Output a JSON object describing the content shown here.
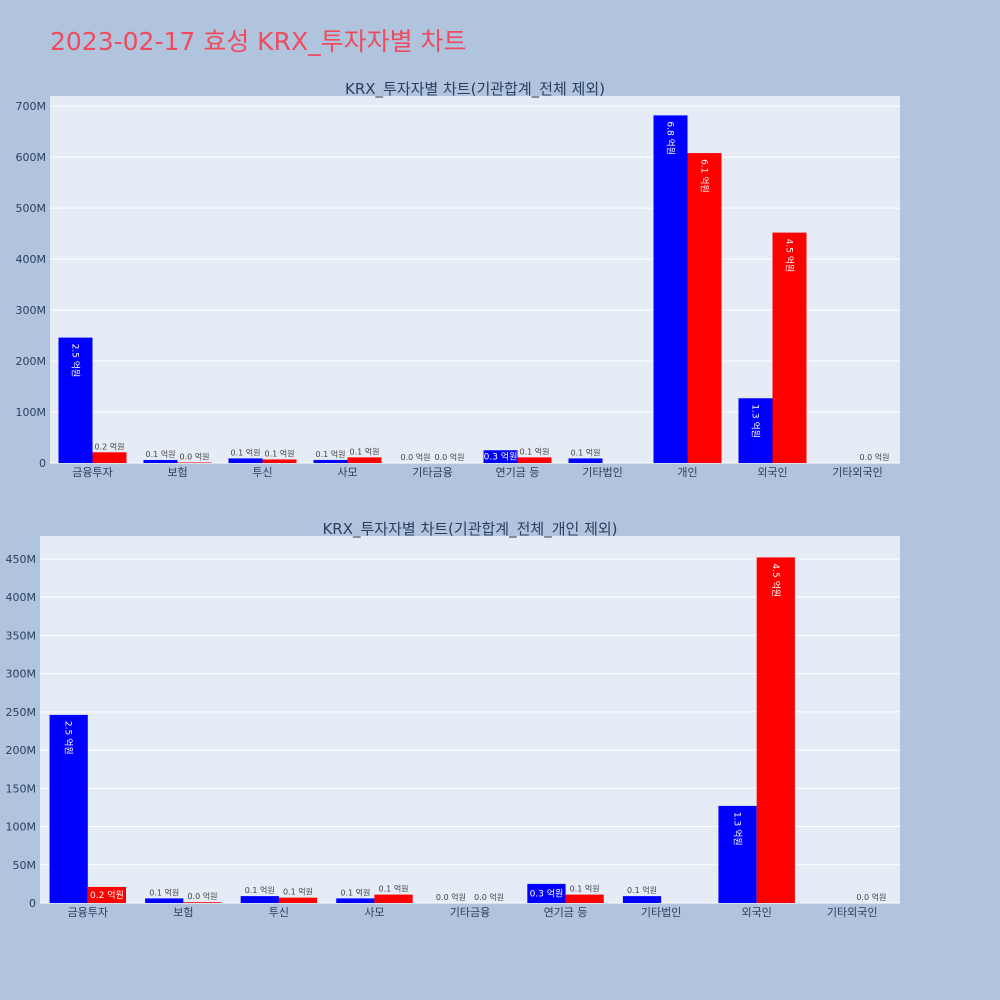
{
  "page": {
    "title": "2023-02-17 효성 KRX_투자자별 차트"
  },
  "colors": {
    "background": "#b0c4de",
    "plot_bg": "#e5ecf6",
    "title": "#ef4b5e",
    "series_a": "#0000ff",
    "series_b": "#ff0000"
  },
  "chart_data": [
    {
      "type": "bar",
      "title": "KRX_투자자별 차트(기관합계_전체 제외)",
      "categories": [
        "금융투자",
        "보험",
        "투신",
        "사모",
        "기타금융",
        "연기금 등",
        "기타법인",
        "개인",
        "외국인",
        "기타외국인"
      ],
      "ylim": [
        0,
        720000000
      ],
      "yticks": [
        0,
        100000000,
        200000000,
        300000000,
        400000000,
        500000000,
        600000000,
        700000000
      ],
      "ytick_labels": [
        "0",
        "100M",
        "200M",
        "300M",
        "400M",
        "500M",
        "600M",
        "700M"
      ],
      "grid": true,
      "series": [
        {
          "color": "#0000ff",
          "values": [
            246000000,
            6000000,
            9000000,
            6000000,
            0,
            25000000,
            9000000,
            682000000,
            127000000,
            null
          ],
          "labels": [
            "2.5 억원",
            "0.1 억원",
            "0.1 억원",
            "0.1 억원",
            "0.0 억원",
            "0.3 억원",
            "0.1 억원",
            "6.8 억원",
            "1.3 억원",
            ""
          ]
        },
        {
          "color": "#ff0000",
          "values": [
            21000000,
            1000000,
            7000000,
            11000000,
            0,
            11000000,
            null,
            608000000,
            452000000,
            0
          ],
          "labels": [
            "0.2 억원",
            "0.0 억원",
            "0.1 억원",
            "0.1 억원",
            "0.0 억원",
            "0.1 억원",
            "",
            "6.1 억원",
            "4.5 억원",
            "0.0 억원"
          ]
        }
      ]
    },
    {
      "type": "bar",
      "title": "KRX_투자자별 차트(기관합계_전체_개인 제외)",
      "categories": [
        "금융투자",
        "보험",
        "투신",
        "사모",
        "기타금융",
        "연기금 등",
        "기타법인",
        "외국인",
        "기타외국인"
      ],
      "ylim": [
        0,
        480000000
      ],
      "yticks": [
        0,
        50000000,
        100000000,
        150000000,
        200000000,
        250000000,
        300000000,
        350000000,
        400000000,
        450000000
      ],
      "ytick_labels": [
        "0",
        "50M",
        "100M",
        "150M",
        "200M",
        "250M",
        "300M",
        "350M",
        "400M",
        "450M"
      ],
      "grid": true,
      "series": [
        {
          "color": "#0000ff",
          "values": [
            246000000,
            6000000,
            9000000,
            6000000,
            0,
            25000000,
            9000000,
            127000000,
            null
          ],
          "labels": [
            "2.5 억원",
            "0.1 억원",
            "0.1 억원",
            "0.1 억원",
            "0.0 억원",
            "0.3 억원",
            "0.1 억원",
            "1.3 억원",
            ""
          ]
        },
        {
          "color": "#ff0000",
          "values": [
            21000000,
            1000000,
            7000000,
            11000000,
            0,
            11000000,
            null,
            452000000,
            0
          ],
          "labels": [
            "0.2 억원",
            "0.0 억원",
            "0.1 억원",
            "0.1 억원",
            "0.0 억원",
            "0.1 억원",
            "",
            "4.5 억원",
            "0.0 억원"
          ]
        }
      ]
    }
  ]
}
